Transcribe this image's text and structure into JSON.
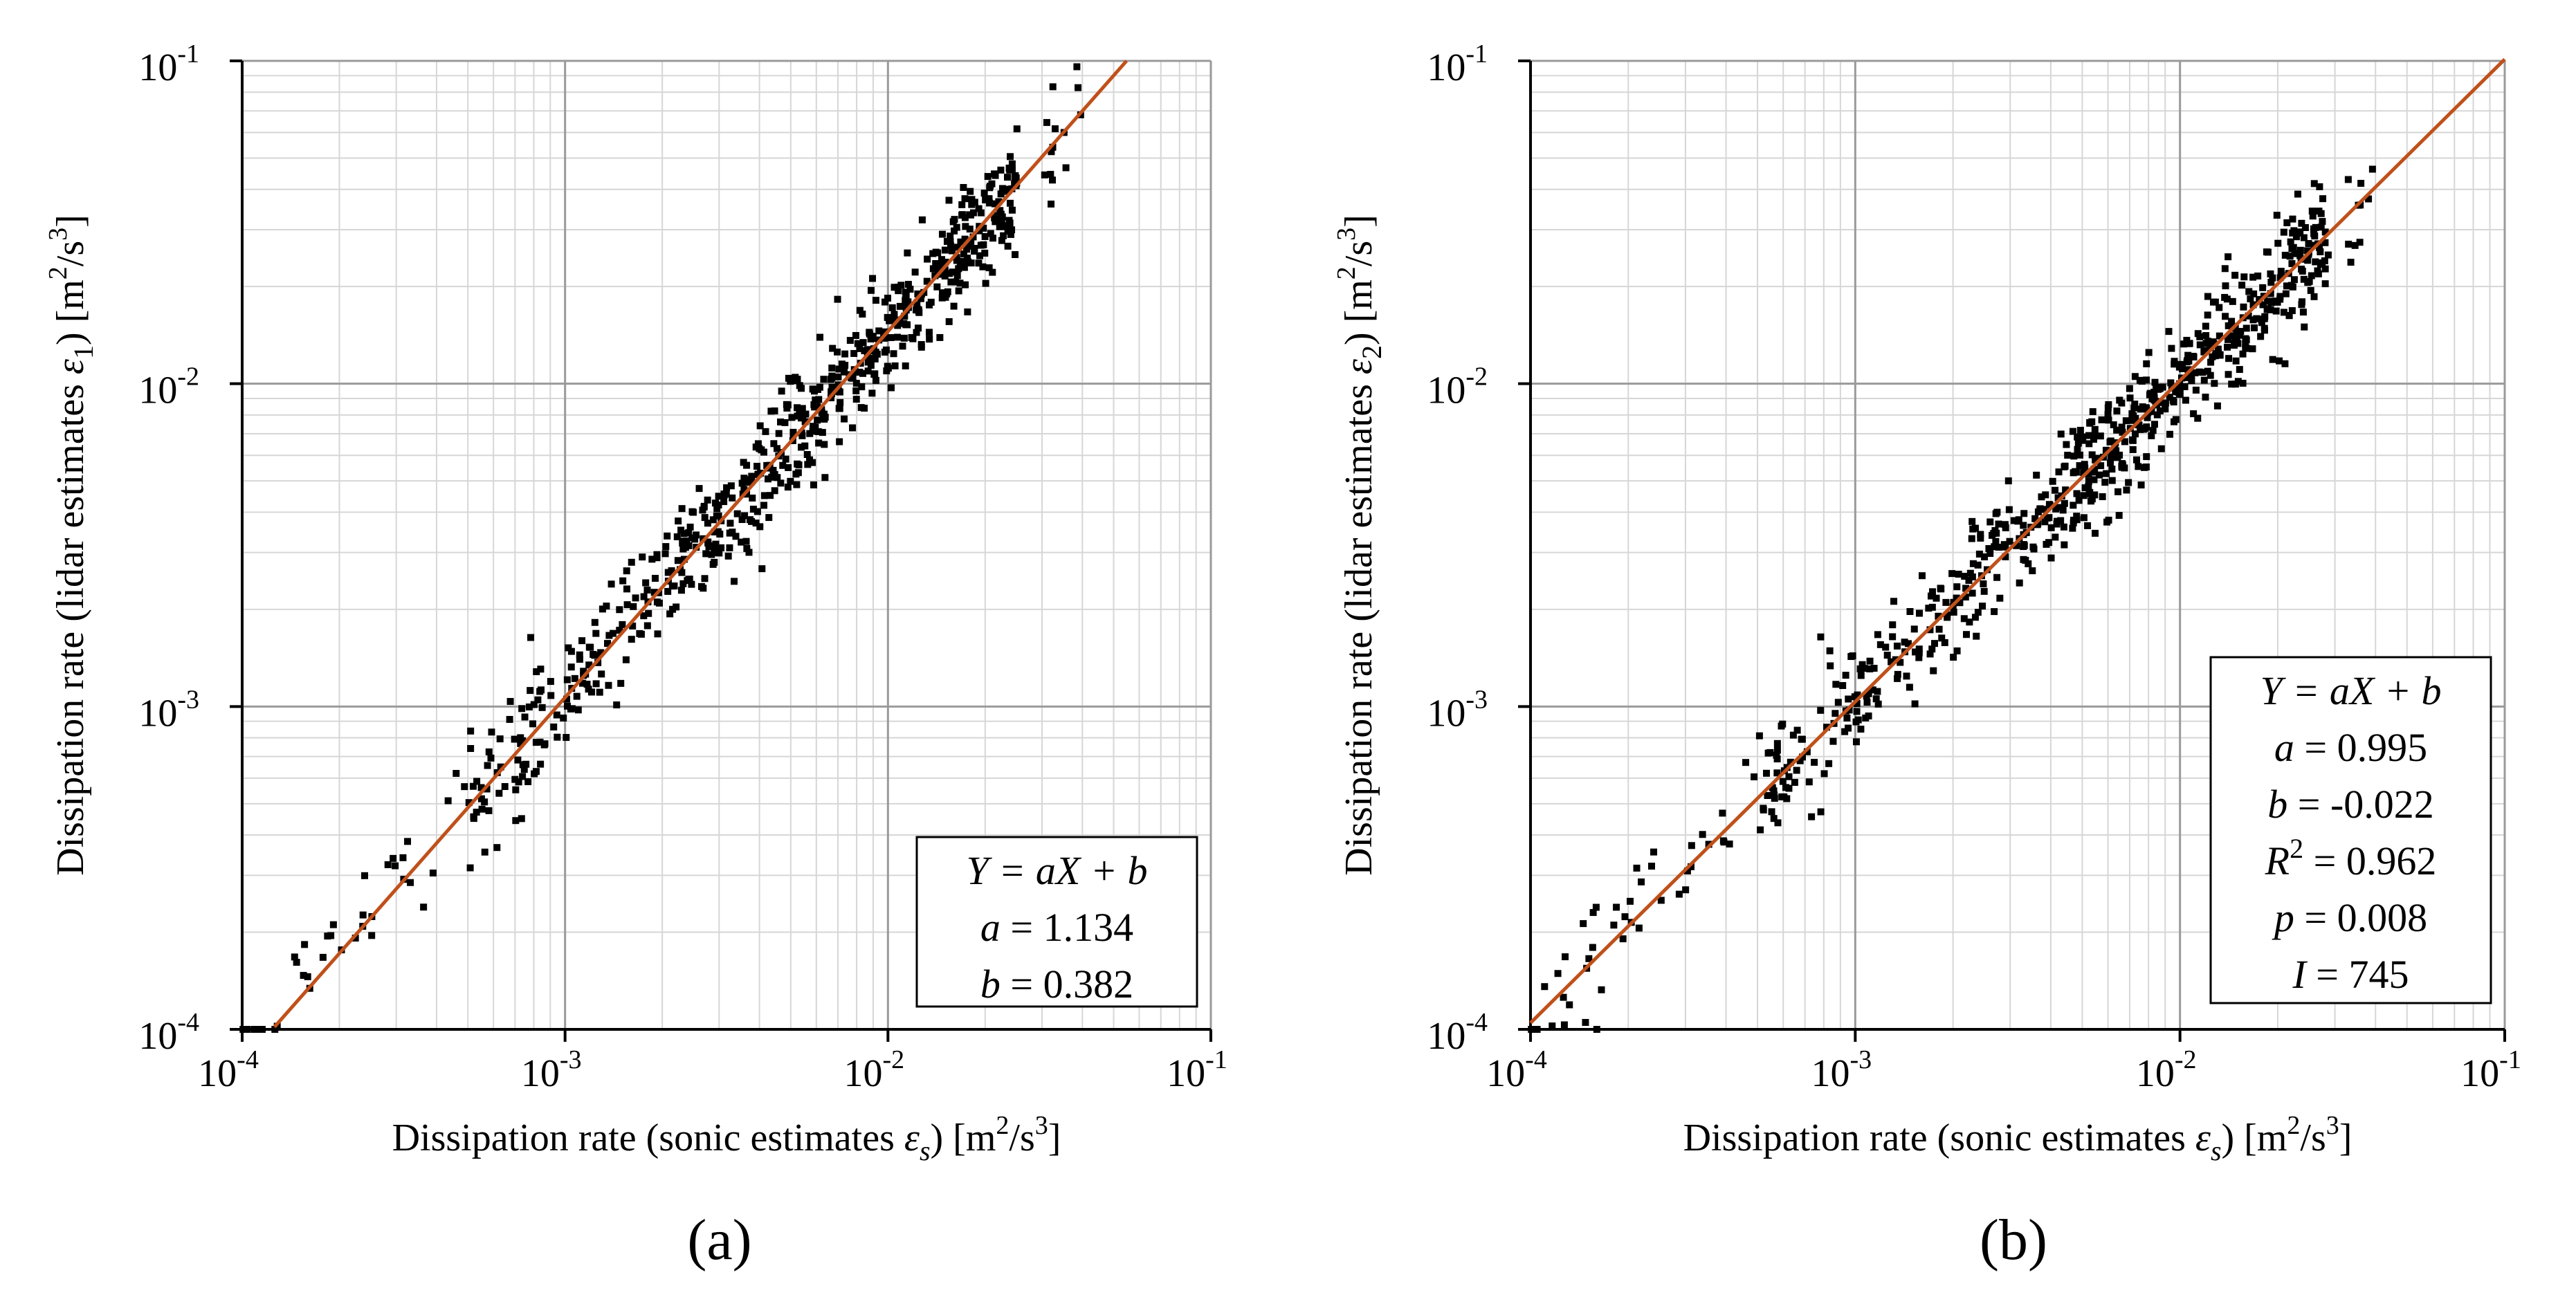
{
  "chart_data": [
    {
      "type": "scatter",
      "panel_label": "(a)",
      "xscale": "log",
      "yscale": "log",
      "xlim": [
        0.0001,
        0.1
      ],
      "ylim": [
        0.0001,
        0.1
      ],
      "xlabel_prefix": "Dissipation rate (sonic estimates ",
      "xlabel_sym": "ε",
      "xlabel_sub": "s",
      "xlabel_suffix": ") [m",
      "xlabel_unit_sup": "2",
      "xlabel_unit_mid": "/s",
      "xlabel_unit_sup2": "3",
      "xlabel_end": "]",
      "ylabel_prefix": "Dissipation rate (lidar estimates ",
      "ylabel_sym": "ε",
      "ylabel_sub": "1",
      "ylabel_suffix": ") [m",
      "ylabel_unit_sup": "2",
      "ylabel_unit_mid": "/s",
      "ylabel_unit_sup2": "3",
      "ylabel_end": "]",
      "ticks": [
        {
          "base": "10",
          "exp": "-4"
        },
        {
          "base": "10",
          "exp": "-3"
        },
        {
          "base": "10",
          "exp": "-2"
        },
        {
          "base": "10",
          "exp": "-1"
        }
      ],
      "fit": {
        "a": 1.134,
        "b": 0.382,
        "color": "#c0501a"
      },
      "legend": {
        "equation": "Y = aX + b",
        "lines": [
          {
            "var": "a",
            "value": "1.134"
          },
          {
            "var": "b",
            "value": "0.382"
          }
        ]
      },
      "point_color": "#000000",
      "points_summary": "approx. 700 points scattered around the fit line from 1e-4 to 4e-2"
    },
    {
      "type": "scatter",
      "panel_label": "(b)",
      "xscale": "log",
      "yscale": "log",
      "xlim": [
        0.0001,
        0.1
      ],
      "ylim": [
        0.0001,
        0.1
      ],
      "xlabel_prefix": "Dissipation rate (sonic estimates ",
      "xlabel_sym": "ε",
      "xlabel_sub": "s",
      "xlabel_suffix": ") [m",
      "xlabel_unit_sup": "2",
      "xlabel_unit_mid": "/s",
      "xlabel_unit_sup2": "3",
      "xlabel_end": "]",
      "ylabel_prefix": "Dissipation rate (lidar estimates ",
      "ylabel_sym": "ε",
      "ylabel_sub": "2",
      "ylabel_suffix": ") [m",
      "ylabel_unit_sup": "2",
      "ylabel_unit_mid": "/s",
      "ylabel_unit_sup2": "3",
      "ylabel_end": "]",
      "ticks": [
        {
          "base": "10",
          "exp": "-4"
        },
        {
          "base": "10",
          "exp": "-3"
        },
        {
          "base": "10",
          "exp": "-2"
        },
        {
          "base": "10",
          "exp": "-1"
        }
      ],
      "fit": {
        "a": 0.995,
        "b": -0.022,
        "color": "#c0501a"
      },
      "legend": {
        "equation": "Y = aX + b",
        "lines": [
          {
            "var": "a",
            "value": "0.995"
          },
          {
            "var": "b",
            "value": "-0.022"
          },
          {
            "var": "R",
            "sup": "2",
            "value": "0.962"
          },
          {
            "var": "p",
            "value": "0.008"
          },
          {
            "var": "I",
            "value": "745"
          }
        ]
      },
      "point_color": "#000000",
      "points_summary": "approx. 700 points scattered around the fit line from 1e-4 to 4e-2"
    }
  ]
}
